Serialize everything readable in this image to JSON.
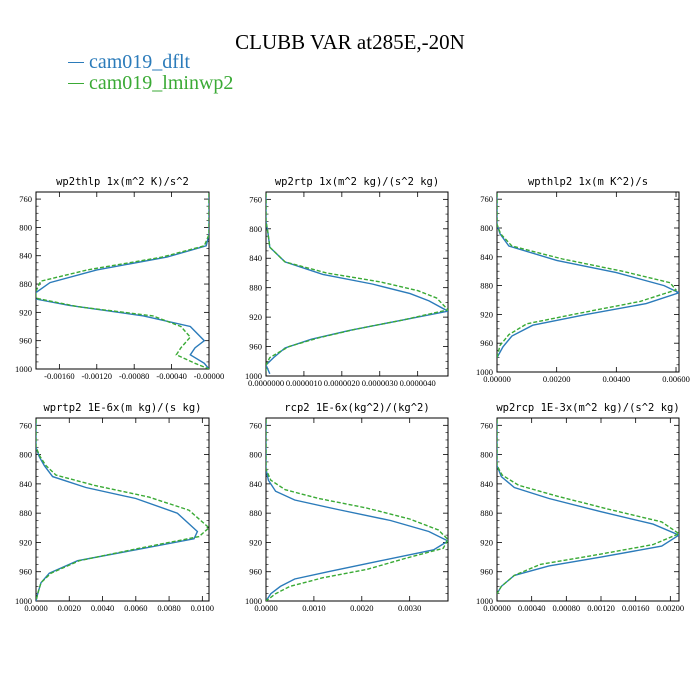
{
  "title": "CLUBB VAR at285E,-20N",
  "legend": [
    {
      "label": "cam019_dflt",
      "color": "#2b7bba"
    },
    {
      "label": "cam019_lminwp2",
      "color": "#3aaa35"
    }
  ],
  "chart_data": [
    {
      "type": "line",
      "title": "wp2thlp  1x(m^2 K)/s^2",
      "xlim": [
        -0.00185,
        0.0
      ],
      "ylim": [
        1000,
        750
      ],
      "xticks": [
        -0.0016,
        -0.0012,
        -0.0008,
        -0.0004,
        0.0
      ],
      "xtick_labels": [
        "-0.00160",
        "-0.00120",
        "-0.00080",
        "-0.00040",
        "-0.00000"
      ],
      "yticks": [
        760,
        800,
        840,
        880,
        920,
        960,
        1000
      ],
      "ytick_labels": [
        "760",
        "800",
        "840",
        "880",
        "920",
        "960",
        "1000"
      ],
      "series": [
        {
          "name": "cam019_dflt",
          "x": [
            0,
            0,
            0,
            -3e-05,
            -0.00045,
            -0.0012,
            -0.0017,
            -0.00185,
            -0.0019,
            -0.0015,
            -0.0007,
            -0.0002,
            -5e-05,
            -0.00015,
            -0.0002,
            -5e-05,
            0
          ],
          "y": [
            752,
            780,
            810,
            826,
            842,
            860,
            878,
            892,
            900,
            910,
            925,
            940,
            960,
            970,
            980,
            992,
            1000
          ]
        },
        {
          "name": "cam019_lminwp2",
          "x": [
            0,
            0,
            0,
            -5e-05,
            -0.0005,
            -0.0013,
            -0.0018,
            -0.00185,
            -0.00185,
            -0.0014,
            -0.0006,
            -0.0003,
            -0.0002,
            -0.0003,
            -0.00035,
            -0.00015,
            0
          ],
          "y": [
            752,
            780,
            810,
            826,
            842,
            860,
            876,
            890,
            900,
            912,
            925,
            940,
            955,
            970,
            980,
            992,
            1000
          ]
        }
      ]
    },
    {
      "type": "line",
      "title": "wp2rtp  1x(m^2 kg)/(s^2 kg)",
      "xlim": [
        0.0,
        4.8e-06
      ],
      "ylim": [
        1000,
        750
      ],
      "xticks": [
        0,
        1e-06,
        2e-06,
        3e-06,
        4e-06
      ],
      "xtick_labels": [
        "0.0000000",
        "0.0000010",
        "0.0000020",
        "0.0000030",
        "0.0000040"
      ],
      "yticks": [
        760,
        800,
        840,
        880,
        920,
        960,
        1000
      ],
      "ytick_labels": [
        "760",
        "800",
        "840",
        "880",
        "920",
        "960",
        "1000"
      ],
      "series": [
        {
          "name": "cam019_dflt",
          "x": [
            0,
            0,
            5e-08,
            1e-07,
            5e-07,
            1.5e-06,
            2.8e-06,
            3.8e-06,
            4.3e-06,
            4.8e-06,
            3.5e-06,
            2.2e-06,
            1.2e-06,
            5e-07,
            2e-07,
            0,
            1e-07
          ],
          "y": [
            752,
            790,
            805,
            825,
            845,
            862,
            875,
            888,
            898,
            912,
            925,
            938,
            950,
            962,
            975,
            985,
            997
          ]
        },
        {
          "name": "cam019_lminwp2",
          "x": [
            0,
            0,
            5e-08,
            1e-07,
            5e-07,
            1.6e-06,
            3e-06,
            4e-06,
            4.5e-06,
            4.8e-06,
            3.6e-06,
            2.4e-06,
            1.4e-06,
            6e-07,
            1e-07,
            0,
            0
          ],
          "y": [
            752,
            790,
            805,
            825,
            845,
            860,
            872,
            884,
            894,
            910,
            924,
            936,
            948,
            960,
            975,
            985,
            997
          ]
        }
      ]
    },
    {
      "type": "line",
      "title": "wpthlp2  1x(m K^2)/s",
      "xlim": [
        0.0,
        0.0061
      ],
      "ylim": [
        1000,
        750
      ],
      "xticks": [
        0,
        0.002,
        0.004,
        0.006
      ],
      "xtick_labels": [
        "0.00000",
        "0.00200",
        "0.00400",
        "0.00600"
      ],
      "yticks": [
        760,
        800,
        840,
        880,
        920,
        960,
        1000
      ],
      "ytick_labels": [
        "760",
        "800",
        "840",
        "880",
        "920",
        "960",
        "1000"
      ],
      "series": [
        {
          "name": "cam019_dflt",
          "x": [
            0,
            0,
            0.0001,
            0.0004,
            0.002,
            0.004,
            0.0056,
            0.0061,
            0.005,
            0.003,
            0.0012,
            0.0005,
            0.0002,
            0
          ],
          "y": [
            752,
            795,
            808,
            825,
            845,
            862,
            880,
            890,
            905,
            920,
            935,
            950,
            965,
            980
          ]
        },
        {
          "name": "cam019_lminwp2",
          "x": [
            0,
            0,
            0.00012,
            0.0005,
            0.0022,
            0.0042,
            0.0058,
            0.006,
            0.0048,
            0.0028,
            0.001,
            0.0004,
            0.0001,
            0
          ],
          "y": [
            752,
            795,
            808,
            825,
            843,
            860,
            876,
            886,
            902,
            918,
            933,
            948,
            963,
            980
          ]
        }
      ]
    },
    {
      "type": "line",
      "title": "wprtp2  1E-6x(m kg)/(s kg)",
      "xlim": [
        0.0,
        0.0104
      ],
      "ylim": [
        1000,
        750
      ],
      "xticks": [
        0,
        0.002,
        0.004,
        0.006,
        0.008,
        0.01
      ],
      "xtick_labels": [
        "0.0000",
        "0.0020",
        "0.0040",
        "0.0060",
        "0.0080",
        "0.0100"
      ],
      "yticks": [
        760,
        800,
        840,
        880,
        920,
        960,
        1000
      ],
      "ytick_labels": [
        "760",
        "800",
        "840",
        "880",
        "920",
        "960",
        "1000"
      ],
      "series": [
        {
          "name": "cam019_dflt",
          "x": [
            0,
            0,
            0.0002,
            0.0005,
            0.001,
            0.003,
            0.006,
            0.0085,
            0.0097,
            0.0095,
            0.006,
            0.0025,
            0.0008,
            0.0003,
            0.0001,
            0
          ],
          "y": [
            752,
            790,
            803,
            815,
            830,
            845,
            860,
            880,
            905,
            915,
            930,
            945,
            962,
            975,
            990,
            1000
          ]
        },
        {
          "name": "cam019_lminwp2",
          "x": [
            0,
            0,
            0.00025,
            0.0006,
            0.0012,
            0.0035,
            0.0068,
            0.0092,
            0.0104,
            0.0098,
            0.0062,
            0.0026,
            0.0009,
            0.0003,
            0.0001,
            0
          ],
          "y": [
            752,
            790,
            803,
            815,
            828,
            842,
            858,
            876,
            900,
            912,
            928,
            945,
            962,
            975,
            990,
            1000
          ]
        }
      ]
    },
    {
      "type": "line",
      "title": "rcp2  1E-6x(kg^2)/(kg^2)",
      "xlim": [
        0.0,
        0.0038
      ],
      "ylim": [
        1000,
        750
      ],
      "xticks": [
        0,
        0.001,
        0.002,
        0.003
      ],
      "xtick_labels": [
        "0.0000",
        "0.0010",
        "0.0020",
        "0.0030"
      ],
      "yticks": [
        760,
        800,
        840,
        880,
        920,
        960,
        1000
      ],
      "ytick_labels": [
        "760",
        "800",
        "840",
        "880",
        "920",
        "960",
        "1000"
      ],
      "series": [
        {
          "name": "cam019_dflt",
          "x": [
            0,
            0,
            5e-05,
            0.0002,
            0.0006,
            0.0015,
            0.0026,
            0.0034,
            0.0038,
            0.0035,
            0.0024,
            0.0013,
            0.0006,
            0.0003,
            0.0001,
            0
          ],
          "y": [
            752,
            820,
            835,
            850,
            862,
            875,
            890,
            905,
            918,
            930,
            945,
            960,
            970,
            980,
            990,
            1000
          ]
        },
        {
          "name": "cam019_lminwp2",
          "x": [
            0,
            0,
            0.0001,
            0.0004,
            0.0011,
            0.0021,
            0.003,
            0.0036,
            0.0038,
            0.0037,
            0.0029,
            0.0021,
            0.0012,
            0.0005,
            0.0002,
            0
          ],
          "y": [
            752,
            820,
            835,
            848,
            860,
            873,
            888,
            903,
            916,
            928,
            942,
            957,
            968,
            980,
            990,
            1000
          ]
        }
      ]
    },
    {
      "type": "line",
      "title": "wp2rcp  1E-3x(m^2 kg)/(s^2 kg)",
      "xlim": [
        0.0,
        0.0021
      ],
      "ylim": [
        1000,
        750
      ],
      "xticks": [
        0,
        0.0004,
        0.0008,
        0.0012,
        0.0016,
        0.002
      ],
      "xtick_labels": [
        "0.00000",
        "0.00040",
        "0.00080",
        "0.00120",
        "0.00160",
        "0.00200"
      ],
      "yticks": [
        760,
        800,
        840,
        880,
        920,
        960,
        1000
      ],
      "ytick_labels": [
        "760",
        "800",
        "840",
        "880",
        "920",
        "960",
        "1000"
      ],
      "series": [
        {
          "name": "cam019_dflt",
          "x": [
            0,
            0,
            5e-05,
            0.0002,
            0.0006,
            0.0012,
            0.0018,
            0.0021,
            0.0019,
            0.0012,
            0.0006,
            0.0002,
            5e-05,
            0
          ],
          "y": [
            752,
            815,
            830,
            845,
            860,
            878,
            895,
            910,
            925,
            940,
            952,
            965,
            980,
            990
          ]
        },
        {
          "name": "cam019_lminwp2",
          "x": [
            0,
            0,
            6e-05,
            0.00025,
            0.0007,
            0.0013,
            0.0019,
            0.0021,
            0.0018,
            0.0011,
            0.0005,
            0.0002,
            5e-05,
            0
          ],
          "y": [
            752,
            815,
            828,
            842,
            857,
            875,
            892,
            908,
            923,
            938,
            950,
            965,
            980,
            990
          ]
        }
      ]
    }
  ]
}
